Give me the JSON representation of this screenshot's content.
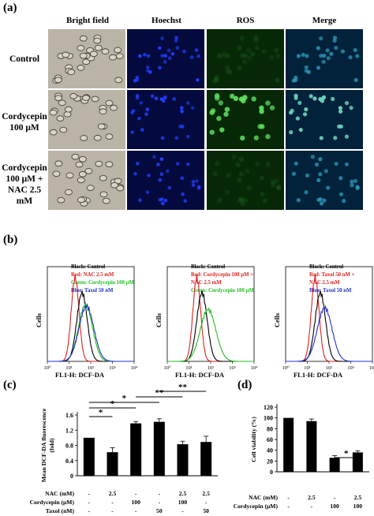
{
  "panel_a": {
    "label": "(a)",
    "columns": [
      "Bright field",
      "Hoechst",
      "ROS",
      "Merge"
    ],
    "rows": [
      {
        "label_lines": [
          "Control"
        ]
      },
      {
        "label_lines": [
          "Cordycepin",
          "100 μM"
        ]
      },
      {
        "label_lines": [
          "Cordycepin",
          "100 μM +",
          "NAC 2.5 mM"
        ]
      }
    ],
    "colors": {
      "hoechst": "#2040ff",
      "ros": "#60e060",
      "merge": "#30a8c8",
      "brightfield": "#b9b4a6"
    }
  },
  "panel_b": {
    "label": "(b)",
    "plots": [
      {
        "legend": [
          {
            "text": "Black: Control",
            "color": "#000000"
          },
          {
            "text": "Red: NAC 2.5 mM",
            "color": "#e02020"
          },
          {
            "text": "Green: Cordycepin 100 μM",
            "color": "#20c020"
          },
          {
            "text": "Blue: Taxol 50 nM",
            "color": "#2030d0"
          }
        ],
        "ylabel": "Cells",
        "xlabel": "FL1-H: DCF-DA"
      },
      {
        "legend": [
          {
            "text": "Black: Control",
            "color": "#000000"
          },
          {
            "text": "Red: Cordycepin 100 μM +",
            "color": "#e02020"
          },
          {
            "text": "NAC 2.5 mM",
            "color": "#e02020"
          },
          {
            "text": "Green: Cordycepin 100 μM",
            "color": "#20c020"
          }
        ],
        "ylabel": "Cells",
        "xlabel": "FL1-H: DCF-DA"
      },
      {
        "legend": [
          {
            "text": "Black: Control",
            "color": "#000000"
          },
          {
            "text": "Red: Taxol 50 nM +",
            "color": "#e02020"
          },
          {
            "text": "NAC 2.5 mM",
            "color": "#e02020"
          },
          {
            "text": "Blue: Taxol 50 nM",
            "color": "#2030d0"
          }
        ],
        "ylabel": "Cells",
        "xlabel": "FL1-H: DCF-DA"
      }
    ],
    "xticks": [
      "10⁰",
      "10¹",
      "10²",
      "10³",
      "10⁴"
    ]
  },
  "panel_c": {
    "label": "(c)"
  },
  "panel_d": {
    "label": "(d)"
  },
  "chart_data": [
    {
      "type": "bar",
      "panel": "c",
      "ylabel": "Mean DCF-DA fluorescence (fold)",
      "ylim": [
        0,
        1.6
      ],
      "yticks": [
        "0",
        "0.4",
        "0.8",
        "1.2",
        "1.6"
      ],
      "values": [
        1.0,
        0.62,
        1.38,
        1.42,
        0.83,
        0.89
      ],
      "errors": [
        0.0,
        0.12,
        0.05,
        0.08,
        0.08,
        0.15
      ],
      "treatment_rows": [
        {
          "label": "NAC (mM)",
          "cells": [
            "-",
            "2.5",
            "-",
            "-",
            "2.5",
            "2.5"
          ]
        },
        {
          "label": "Cordycepin (μM)",
          "cells": [
            "-",
            "-",
            "100",
            "-",
            "100",
            "-"
          ]
        },
        {
          "label": "Taxol (nM)",
          "cells": [
            "-",
            "-",
            "-",
            "50",
            "-",
            "50"
          ]
        }
      ],
      "significance": [
        {
          "from": 0,
          "to": 1,
          "label": "*"
        },
        {
          "from": 0,
          "to": 2,
          "label": "*"
        },
        {
          "from": 0,
          "to": 3,
          "label": "*"
        },
        {
          "from": 2,
          "to": 4,
          "label": "**"
        },
        {
          "from": 3,
          "to": 5,
          "label": "**"
        }
      ]
    },
    {
      "type": "bar",
      "panel": "d",
      "ylabel": "Cell viability (%)",
      "ylim": [
        0,
        120
      ],
      "yticks": [
        "0",
        "20",
        "40",
        "60",
        "80",
        "100",
        "120"
      ],
      "values": [
        100,
        94,
        26,
        36
      ],
      "errors": [
        0,
        4,
        4,
        3
      ],
      "treatment_rows": [
        {
          "label": "NAC (mM)",
          "cells": [
            "-",
            "2.5",
            "-",
            "2.5"
          ]
        },
        {
          "label": "Cordycepin (μM)",
          "cells": [
            "-",
            "-",
            "100",
            "100"
          ]
        }
      ],
      "significance": [
        {
          "from": 2,
          "to": 3,
          "label": "*"
        }
      ]
    }
  ]
}
